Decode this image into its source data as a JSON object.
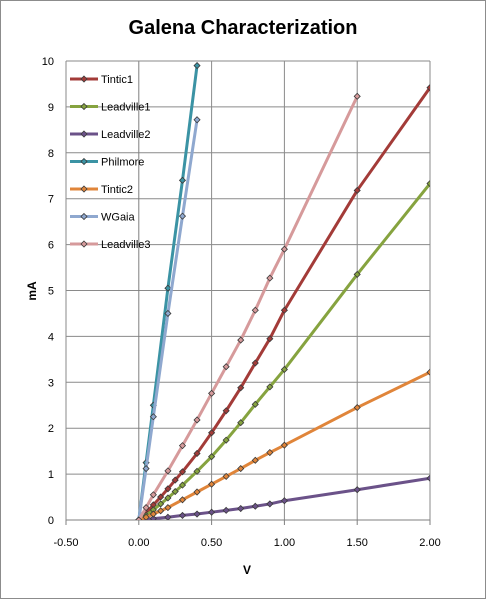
{
  "chart_data": {
    "type": "scatter",
    "title": "Galena Characterization",
    "xlabel": "V",
    "ylabel": "mA",
    "xlim": [
      -0.5,
      2.0
    ],
    "ylim": [
      0,
      10
    ],
    "xticks": [
      "-0.50",
      "0.00",
      "0.50",
      "1.00",
      "1.50",
      "2.00"
    ],
    "yticks": [
      "0",
      "1",
      "2",
      "3",
      "4",
      "5",
      "6",
      "7",
      "8",
      "9",
      "10"
    ],
    "legend_position": "top-left",
    "series": [
      {
        "name": "Tintic1",
        "color": "#a33b38",
        "x": [
          0,
          0.05,
          0.1,
          0.15,
          0.2,
          0.25,
          0.3,
          0.4,
          0.5,
          0.6,
          0.7,
          0.8,
          0.9,
          1.0,
          1.5,
          2.0
        ],
        "y": [
          0,
          0.15,
          0.33,
          0.5,
          0.68,
          0.87,
          1.05,
          1.45,
          1.9,
          2.38,
          2.88,
          3.42,
          3.95,
          4.57,
          7.18,
          9.42
        ]
      },
      {
        "name": "Leadville1",
        "color": "#86a33f",
        "x": [
          0,
          0.05,
          0.1,
          0.15,
          0.2,
          0.25,
          0.3,
          0.4,
          0.5,
          0.6,
          0.7,
          0.8,
          0.9,
          1.0,
          1.5,
          2.0
        ],
        "y": [
          0,
          0.1,
          0.22,
          0.35,
          0.48,
          0.62,
          0.76,
          1.06,
          1.38,
          1.74,
          2.12,
          2.52,
          2.9,
          3.28,
          5.35,
          7.33
        ]
      },
      {
        "name": "Leadville2",
        "color": "#6b5289",
        "x": [
          0,
          0.1,
          0.2,
          0.3,
          0.4,
          0.5,
          0.6,
          0.7,
          0.8,
          0.9,
          1.0,
          1.5,
          2.0
        ],
        "y": [
          0,
          0.03,
          0.06,
          0.1,
          0.13,
          0.17,
          0.21,
          0.25,
          0.3,
          0.35,
          0.42,
          0.66,
          0.91
        ]
      },
      {
        "name": "Philmore",
        "color": "#3b93a4",
        "x": [
          0,
          0.05,
          0.1,
          0.2,
          0.3,
          0.4
        ],
        "y": [
          0,
          1.25,
          2.5,
          5.05,
          7.4,
          9.9
        ]
      },
      {
        "name": "Tintic2",
        "color": "#e0853a",
        "x": [
          0,
          0.05,
          0.1,
          0.15,
          0.2,
          0.3,
          0.4,
          0.5,
          0.6,
          0.7,
          0.8,
          0.9,
          1.0,
          1.5,
          2.0
        ],
        "y": [
          0,
          0.06,
          0.13,
          0.2,
          0.27,
          0.44,
          0.61,
          0.78,
          0.95,
          1.12,
          1.3,
          1.47,
          1.63,
          2.45,
          3.22
        ]
      },
      {
        "name": "WGaia",
        "color": "#8fa8cf",
        "x": [
          0,
          0.05,
          0.1,
          0.2,
          0.3,
          0.4
        ],
        "y": [
          0,
          1.12,
          2.25,
          4.5,
          6.62,
          8.72
        ]
      },
      {
        "name": "Leadville3",
        "color": "#d69a9b",
        "x": [
          0,
          0.05,
          0.1,
          0.2,
          0.3,
          0.4,
          0.5,
          0.6,
          0.7,
          0.8,
          0.9,
          1.0,
          1.5
        ],
        "y": [
          0,
          0.27,
          0.55,
          1.07,
          1.62,
          2.18,
          2.76,
          3.34,
          3.92,
          4.57,
          5.27,
          5.9,
          9.23
        ]
      }
    ]
  }
}
